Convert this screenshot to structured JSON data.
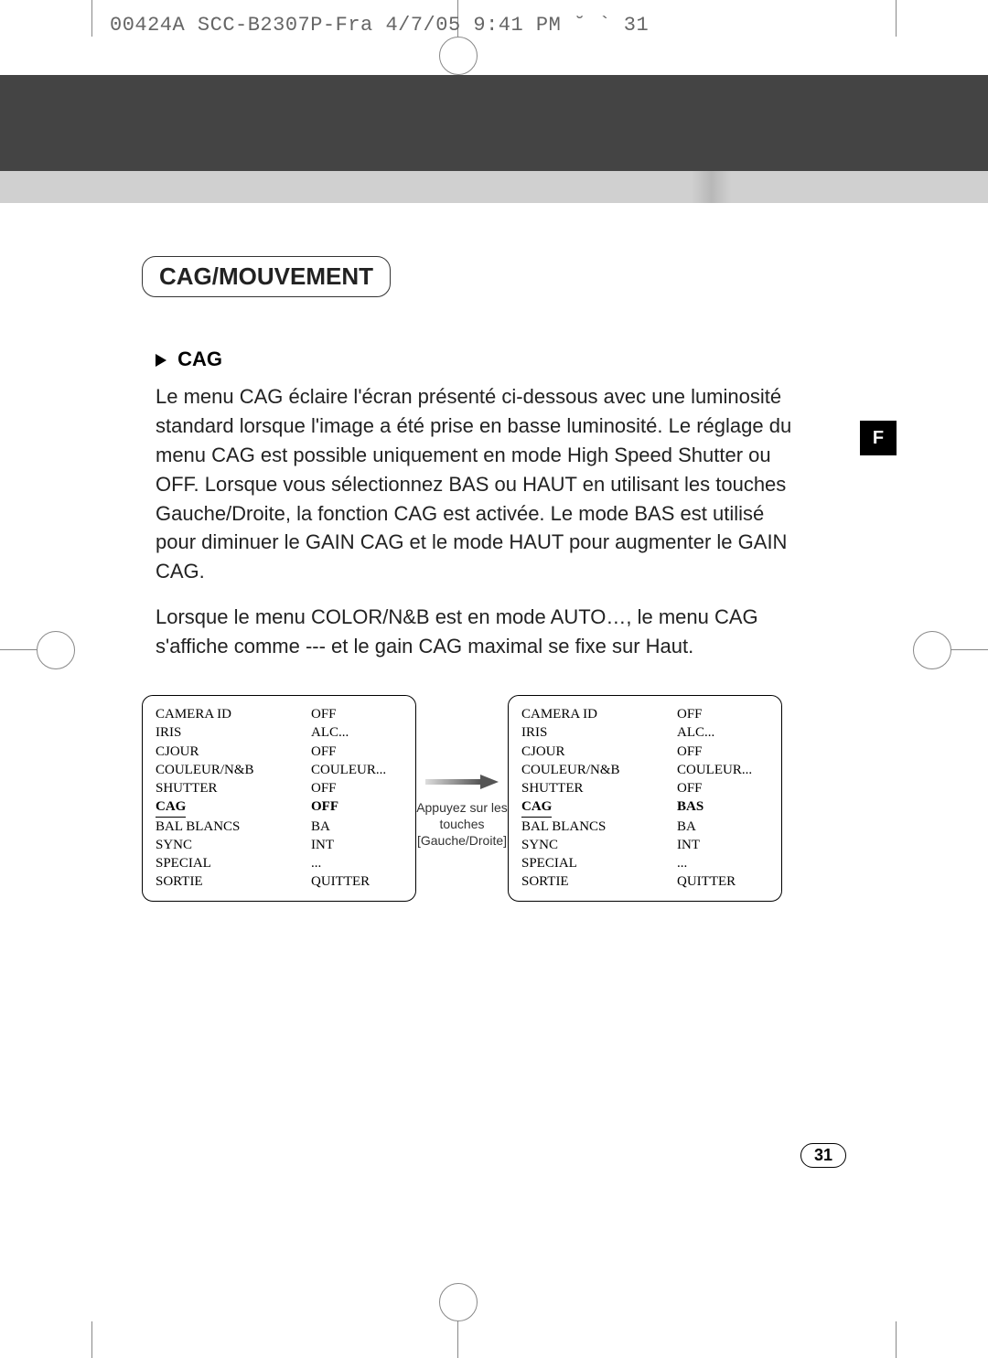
{
  "header": {
    "doc_info": "00424A SCC-B2307P-Fra  4/7/05 9:41 PM  ˘ `  31"
  },
  "side_badge": "F",
  "section": {
    "title": "CAG/MOUVEMENT",
    "subsection_title": "CAG",
    "paragraph1": "Le menu CAG éclaire l'écran présenté ci-dessous avec une luminosité standard lorsque l'image a été prise en basse luminosité. Le réglage du menu CAG est possible uniquement en mode High Speed Shutter ou OFF. Lorsque vous sélectionnez BAS ou HAUT en utilisant les touches Gauche/Droite, la fonction CAG est activée. Le mode BAS est utilisé pour diminuer le GAIN CAG et le mode HAUT pour augmenter le GAIN CAG.",
    "paragraph2": "Lorsque le menu COLOR/N&B est en mode AUTO…, le menu CAG s'affiche comme --- et le gain CAG maximal se fixe sur Haut."
  },
  "menu_left": {
    "rows": [
      {
        "label": "CAMERA ID",
        "value": "OFF"
      },
      {
        "label": "IRIS",
        "value": "ALC..."
      },
      {
        "label": "CJOUR",
        "value": "OFF"
      },
      {
        "label": "COULEUR/N&B",
        "value": "COULEUR..."
      },
      {
        "label": "SHUTTER",
        "value": "OFF"
      },
      {
        "label": "CAG",
        "value": "OFF",
        "highlight": true
      },
      {
        "label": "BAL BLANCS",
        "value": "BA"
      },
      {
        "label": "SYNC",
        "value": "INT"
      },
      {
        "label": "SPECIAL",
        "value": "..."
      },
      {
        "label": "SORTIE",
        "value": "QUITTER"
      }
    ]
  },
  "arrow": {
    "line1": "Appuyez sur les",
    "line2": "touches",
    "line3": "[Gauche/Droite]"
  },
  "menu_right": {
    "rows": [
      {
        "label": "CAMERA ID",
        "value": "OFF"
      },
      {
        "label": "IRIS",
        "value": "ALC..."
      },
      {
        "label": "CJOUR",
        "value": "OFF"
      },
      {
        "label": "COULEUR/N&B",
        "value": "COULEUR..."
      },
      {
        "label": "SHUTTER",
        "value": "OFF"
      },
      {
        "label": "CAG",
        "value": "BAS",
        "highlight": true
      },
      {
        "label": "BAL BLANCS",
        "value": "BA"
      },
      {
        "label": "SYNC",
        "value": "INT"
      },
      {
        "label": "SPECIAL",
        "value": "..."
      },
      {
        "label": "SORTIE",
        "value": "QUITTER"
      }
    ]
  },
  "page_number": "31"
}
